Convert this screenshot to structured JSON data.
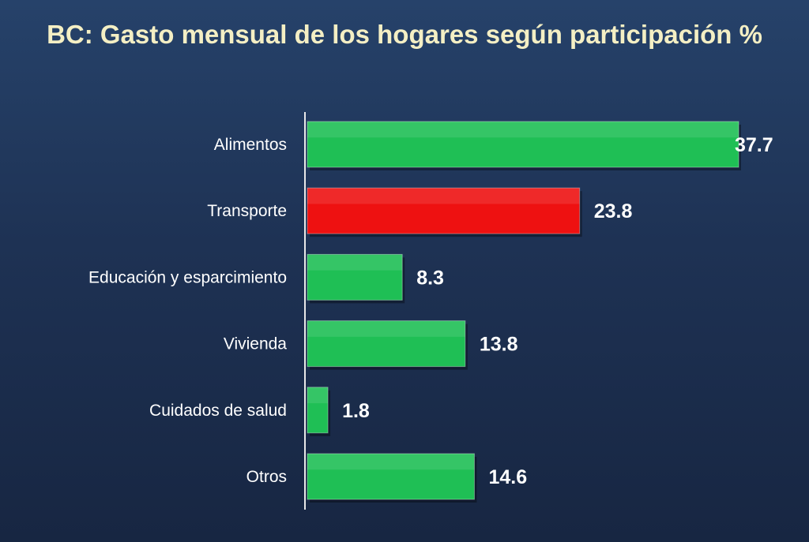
{
  "chart_data": {
    "type": "bar",
    "orientation": "horizontal",
    "title": "BC: Gasto mensual de los hogares según participación %",
    "categories": [
      "Alimentos",
      "Transporte",
      "Educación y esparcimiento",
      "Vivienda",
      "Cuidados de salud",
      "Otros"
    ],
    "values": [
      37.7,
      23.8,
      8.3,
      13.8,
      1.8,
      14.6
    ],
    "value_labels": [
      "37.7",
      "23.8",
      "8.3",
      "13.8",
      "1.8",
      "14.6"
    ],
    "bar_colors": [
      "#1fbf55",
      "#ee1111",
      "#1fbf55",
      "#1fbf55",
      "#1fbf55",
      "#1fbf55"
    ],
    "xlim": [
      0,
      37.7
    ],
    "grid": false,
    "legend": "none"
  },
  "colors": {
    "background": "#1e3254",
    "title": "#f4efc4",
    "highlight": "#ee1111",
    "default_bar": "#1fbf55",
    "axis": "#e8e8e8"
  }
}
